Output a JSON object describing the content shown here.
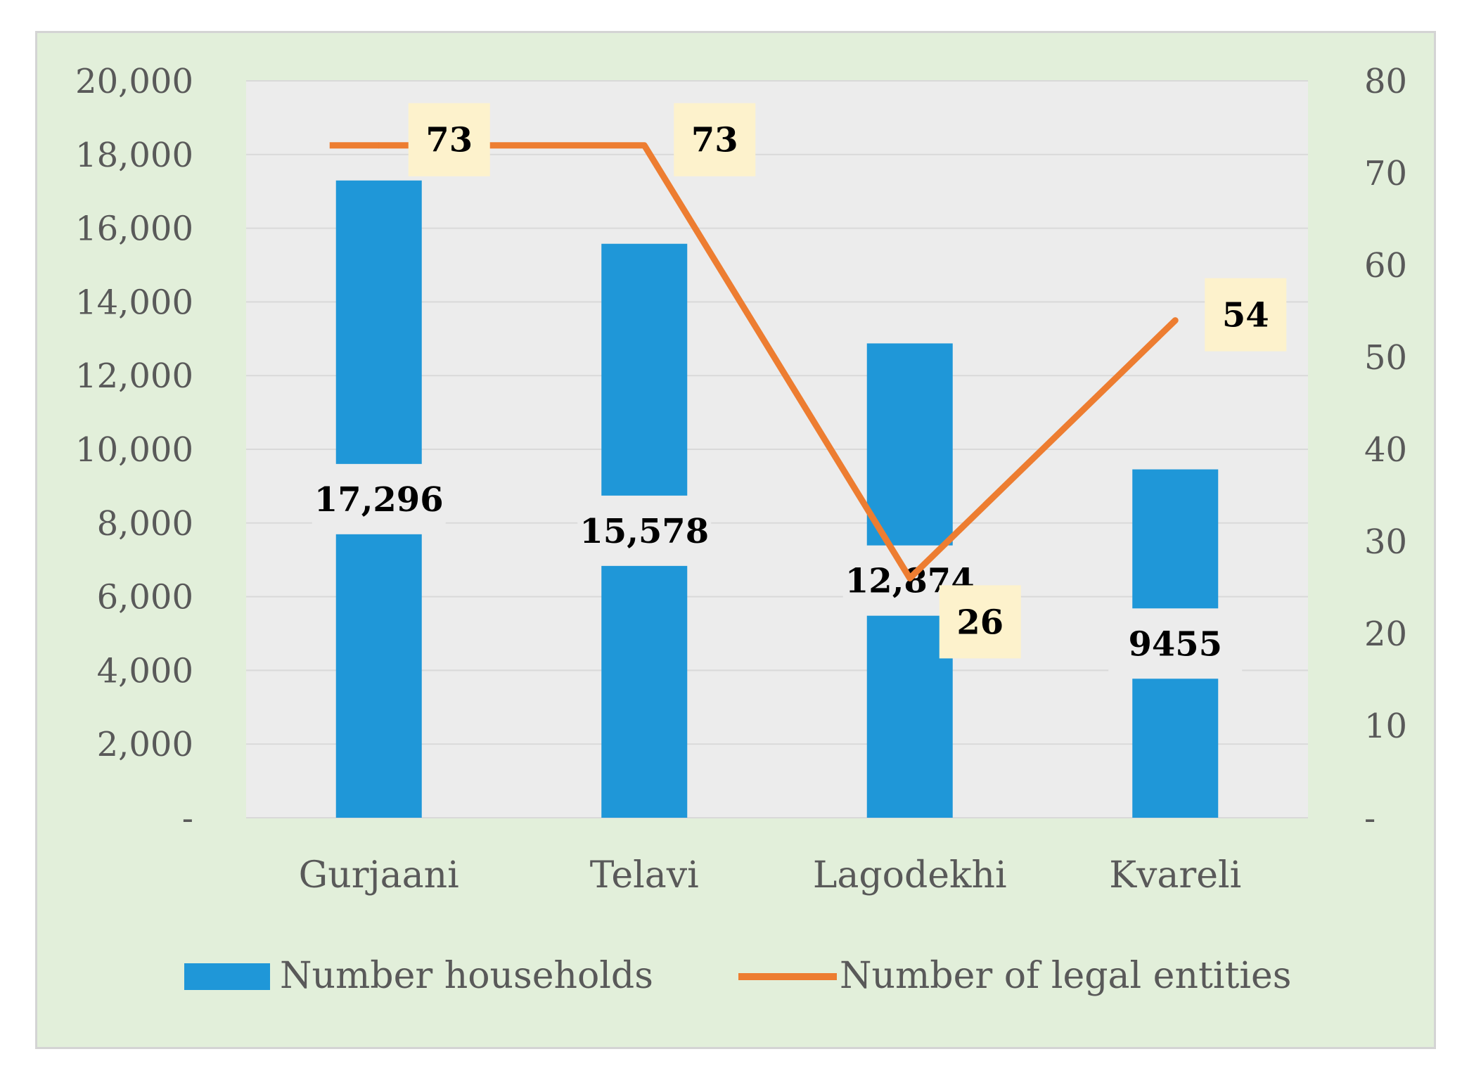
{
  "colors": {
    "frame_bg": "#e2efda",
    "plot_bg": "#ececec",
    "grid": "#d9d9d9",
    "bar": "#1f97d8",
    "line": "#ed7d31",
    "label_box": "#fdf2cc",
    "bar_label_box": "#ececec",
    "tick_text": "#595959"
  },
  "chart_data": {
    "type": "bar",
    "categories": [
      "Gurjaani",
      "Telavi",
      "Lagodekhi",
      "Kvareli"
    ],
    "series": [
      {
        "name": "Number households",
        "kind": "bar",
        "axis": "left",
        "values": [
          17296,
          15578,
          12874,
          9455
        ],
        "labels": [
          "17,296",
          "15,578",
          "12,874",
          "9455"
        ]
      },
      {
        "name": "Number of legal entities",
        "kind": "line",
        "axis": "right",
        "values": [
          73,
          73,
          26,
          54
        ],
        "labels": [
          "73",
          "73",
          "26",
          "54"
        ]
      }
    ],
    "left_axis": {
      "min": 0,
      "max": 20000,
      "ticks": [
        0,
        2000,
        4000,
        6000,
        8000,
        10000,
        12000,
        14000,
        16000,
        18000,
        20000
      ],
      "tick_labels": [
        "-",
        "2,000",
        "4,000",
        "6,000",
        "8,000",
        "10,000",
        "12,000",
        "14,000",
        "16,000",
        "18,000",
        "20,000"
      ]
    },
    "right_axis": {
      "min": 0,
      "max": 80,
      "ticks": [
        0,
        10,
        20,
        30,
        40,
        50,
        60,
        70,
        80
      ],
      "tick_labels": [
        "-",
        "10",
        "20",
        "30",
        "40",
        "50",
        "60",
        "70",
        "80"
      ]
    },
    "grid": true,
    "legend_position": "bottom",
    "title": "",
    "xlabel": "",
    "ylabel": ""
  }
}
